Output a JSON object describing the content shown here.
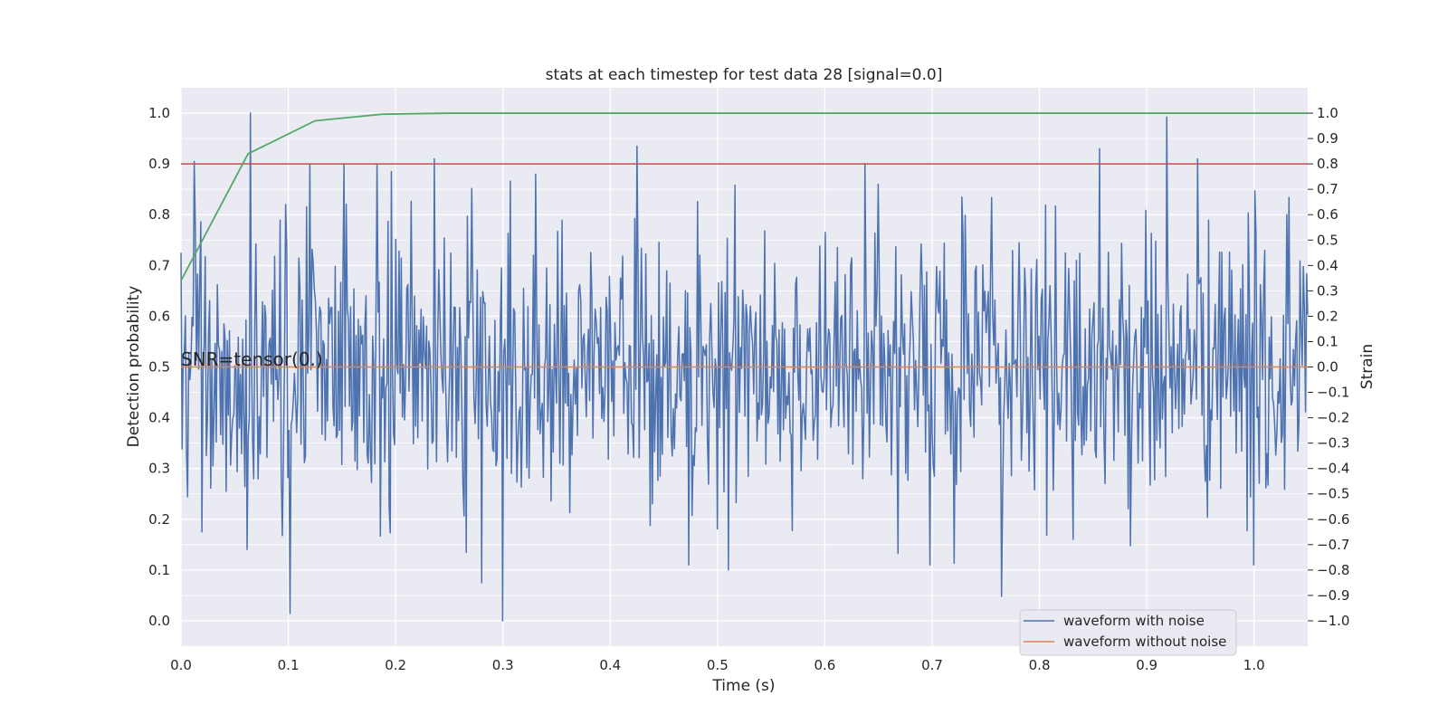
{
  "chart_data": {
    "type": "line",
    "title": "stats at each timestep for test data 28 [signal=0.0]",
    "xlabel": "Time (s)",
    "ylabel": "Detection probability",
    "ylabel_right": "Strain",
    "xlim": [
      0.0,
      1.05
    ],
    "ylim": [
      -0.05,
      1.05
    ],
    "ylim_right": [
      -1.1,
      1.1
    ],
    "x_ticks": [
      "0.0",
      "0.1",
      "0.2",
      "0.3",
      "0.4",
      "0.5",
      "0.6",
      "0.7",
      "0.8",
      "0.9",
      "1.0"
    ],
    "y_ticks": [
      "0.0",
      "0.1",
      "0.2",
      "0.3",
      "0.4",
      "0.5",
      "0.6",
      "0.7",
      "0.8",
      "0.9",
      "1.0"
    ],
    "y_ticks_right": [
      "−1.0",
      "−0.9",
      "−0.8",
      "−0.7",
      "−0.6",
      "−0.5",
      "−0.4",
      "−0.3",
      "−0.2",
      "−0.1",
      "0.0",
      "0.1",
      "0.2",
      "0.3",
      "0.4",
      "0.5",
      "0.6",
      "0.7",
      "0.8",
      "0.9",
      "1.0"
    ],
    "grid": true,
    "legend_position": "lower right",
    "annotation": "SNR=tensor(0.)",
    "detection_probability": {
      "color": "#55a868",
      "x": [
        0.0,
        0.0625,
        0.125,
        0.1875,
        0.25,
        0.3125,
        0.375,
        0.4375,
        0.5,
        0.5625,
        0.625,
        0.6875,
        0.75,
        0.8125,
        0.875,
        0.9375,
        1.0,
        1.05
      ],
      "y": [
        0.67,
        0.92,
        0.985,
        0.998,
        1.0,
        1.0,
        1.0,
        1.0,
        1.0,
        1.0,
        1.0,
        1.0,
        1.0,
        1.0,
        1.0,
        1.0,
        1.0,
        1.0
      ]
    },
    "threshold": {
      "color": "#c44e52",
      "value": 0.9
    },
    "series": [
      {
        "name": "waveform with noise",
        "color": "#4c72b0",
        "axis": "right",
        "x_start": 0.0,
        "x_end": 1.05,
        "num_points": 1024,
        "x_peaks": [
          0.0,
          0.012,
          0.02,
          0.065,
          0.12,
          0.152,
          0.183,
          0.236,
          0.28,
          0.3,
          0.33,
          0.425,
          0.473,
          0.51,
          0.65,
          0.698,
          0.856,
          0.947,
          1.0,
          1.03
        ],
        "y_peaks": [
          0.45,
          0.81,
          -0.65,
          1.0,
          0.8,
          0.8,
          0.8,
          0.82,
          -0.85,
          -1.0,
          0.76,
          0.87,
          -0.78,
          -0.8,
          0.72,
          -0.78,
          0.86,
          0.82,
          -0.78,
          0.6
        ],
        "typical_amplitude": 0.28
      },
      {
        "name": "waveform without noise",
        "color": "#dd8452",
        "axis": "right",
        "x": [
          0.0,
          1.05
        ],
        "y": [
          0.0,
          0.0
        ]
      }
    ]
  }
}
